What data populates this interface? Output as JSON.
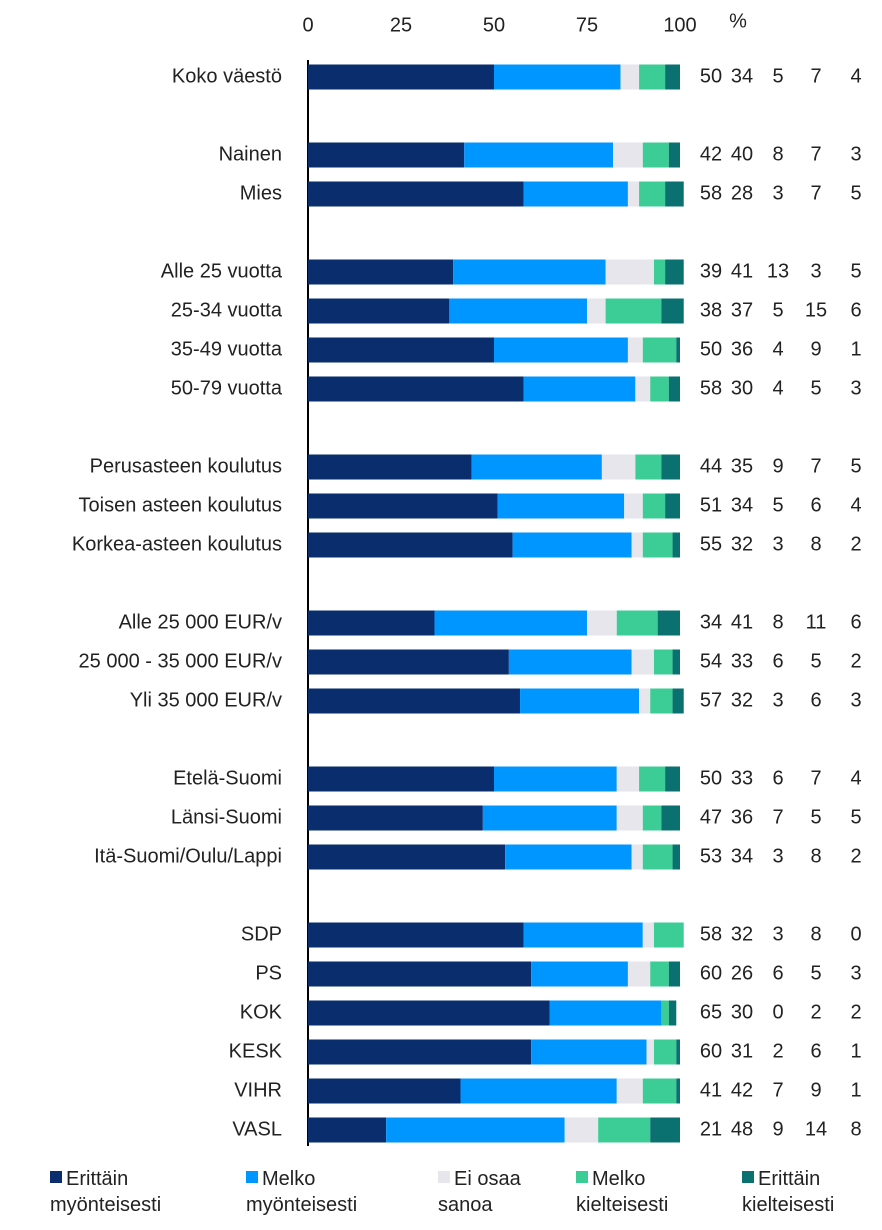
{
  "chart_data": {
    "type": "stacked_barh",
    "xlabel": "%",
    "xlim": [
      0,
      100
    ],
    "xticks": [
      0,
      25,
      50,
      75,
      100
    ],
    "categories": [
      "Koko väestö",
      null,
      "Nainen",
      "Mies",
      null,
      "Alle 25 vuotta",
      "25-34 vuotta",
      "35-49 vuotta",
      "50-79 vuotta",
      null,
      "Perusasteen koulutus",
      "Toisen asteen koulutus",
      "Korkea-asteen koulutus",
      null,
      "Alle 25 000 EUR/v",
      "25 000 - 35 000 EUR/v",
      "Yli 35 000 EUR/v",
      null,
      "Etelä-Suomi",
      "Länsi-Suomi",
      "Itä-Suomi/Oulu/Lappi",
      null,
      "SDP",
      "PS",
      "KOK",
      "KESK",
      "VIHR",
      "VASL"
    ],
    "series": [
      {
        "name": "Erittäin myönteisesti",
        "color": "#0a2d6e",
        "values": [
          50,
          null,
          42,
          58,
          null,
          39,
          38,
          50,
          58,
          null,
          44,
          51,
          55,
          null,
          34,
          54,
          57,
          null,
          50,
          47,
          53,
          null,
          58,
          60,
          65,
          60,
          41,
          21
        ]
      },
      {
        "name": "Melko myönteisesti",
        "color": "#0096ff",
        "values": [
          34,
          null,
          40,
          28,
          null,
          41,
          37,
          36,
          30,
          null,
          35,
          34,
          32,
          null,
          41,
          33,
          32,
          null,
          33,
          36,
          34,
          null,
          32,
          26,
          30,
          31,
          42,
          48
        ]
      },
      {
        "name": "Ei osaa sanoa",
        "color": "#e6e6ec",
        "values": [
          5,
          null,
          8,
          3,
          null,
          13,
          5,
          4,
          4,
          null,
          9,
          5,
          3,
          null,
          8,
          6,
          3,
          null,
          6,
          7,
          3,
          null,
          3,
          6,
          0,
          2,
          7,
          9
        ]
      },
      {
        "name": "Melko kielteisesti",
        "color": "#3ccc96",
        "values": [
          7,
          null,
          7,
          7,
          null,
          3,
          15,
          9,
          5,
          null,
          7,
          6,
          8,
          null,
          11,
          5,
          6,
          null,
          7,
          5,
          8,
          null,
          8,
          5,
          2,
          6,
          9,
          14
        ]
      },
      {
        "name": "Erittäin kielteisesti",
        "color": "#0a7070",
        "values": [
          4,
          null,
          3,
          5,
          null,
          5,
          6,
          1,
          3,
          null,
          5,
          4,
          2,
          null,
          6,
          2,
          3,
          null,
          4,
          5,
          2,
          null,
          0,
          3,
          2,
          1,
          1,
          8
        ]
      }
    ]
  }
}
